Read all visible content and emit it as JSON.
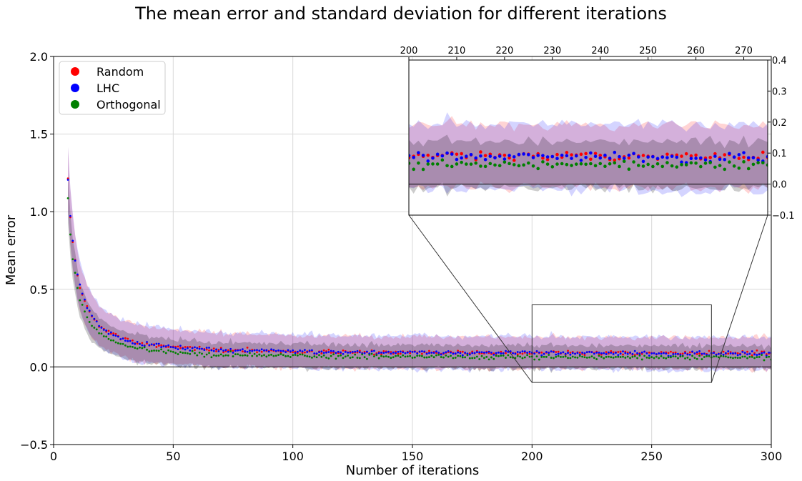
{
  "chart_data": [
    {
      "type": "scatter",
      "role": "main",
      "title": "The mean error and standard deviation for different iterations",
      "xlabel": "Number of iterations",
      "ylabel": "Mean error",
      "xlim": [
        0,
        300
      ],
      "ylim": [
        -0.5,
        2.0
      ],
      "xticks": [
        "0",
        "50",
        "100",
        "150",
        "200",
        "250",
        "300"
      ],
      "yticks": [
        "−0.5",
        "0.0",
        "0.5",
        "1.0",
        "1.5",
        "2.0"
      ],
      "grid": true,
      "legend_position": "upper-left",
      "baseline_y": 0.0,
      "x_start": 6,
      "x_end": 300,
      "zoom_region": {
        "x": [
          200,
          275
        ],
        "y": [
          -0.1,
          0.4
        ]
      },
      "series": [
        {
          "name": "Random",
          "color": "#ff0000",
          "band_color": "#ff0000",
          "approx_mean": {
            "asymptote": 0.085,
            "initial_scale": 18.0,
            "decay_exponent": 1.55
          },
          "approx_std": {
            "asymptote": 0.09,
            "initial_scale": 0.3
          }
        },
        {
          "name": "LHC",
          "color": "#0000ff",
          "band_color": "#0000ff",
          "approx_mean": {
            "asymptote": 0.085,
            "initial_scale": 18.0,
            "decay_exponent": 1.55
          },
          "approx_std": {
            "asymptote": 0.095,
            "initial_scale": 0.3
          }
        },
        {
          "name": "Orthogonal",
          "color": "#008000",
          "band_color": "#000000",
          "approx_mean": {
            "asymptote": 0.06,
            "initial_scale": 18.0,
            "decay_exponent": 1.6
          },
          "approx_std": {
            "asymptote": 0.065,
            "initial_scale": 0.25
          }
        }
      ]
    },
    {
      "type": "scatter",
      "role": "inset",
      "xlim": [
        200,
        275
      ],
      "ylim": [
        -0.1,
        0.4
      ],
      "xticks": [
        "200",
        "210",
        "220",
        "230",
        "240",
        "250",
        "260",
        "270"
      ],
      "yticks": [
        "−0.1",
        "0.0",
        "0.1",
        "0.2",
        "0.3",
        "0.4"
      ],
      "x_axis_position": "top",
      "y_axis_position": "right",
      "grid": false
    }
  ]
}
